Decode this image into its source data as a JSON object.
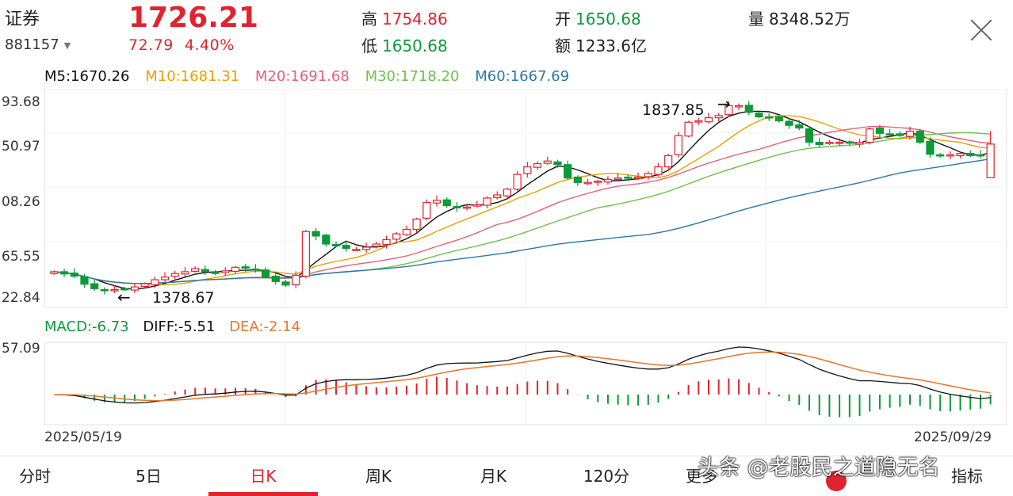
{
  "header": {
    "name": "证券",
    "code": "881157",
    "price": "1726.21",
    "change": "72.79",
    "change_pct": "4.40%",
    "high_label": "高",
    "high": "1754.86",
    "low_label": "低",
    "low": "1650.68",
    "open_label": "开",
    "open": "1650.68",
    "amount_label": "额",
    "amount": "1233.6亿",
    "volume_label": "量",
    "volume": "8348.52万"
  },
  "ma_legend": {
    "m5": "M5:1670.26",
    "m10": "M10:1681.31",
    "m20": "M20:1691.68",
    "m30": "M30:1718.20",
    "m60": "M60:1667.69"
  },
  "price_axis": [
    "93.68",
    "50.97",
    "08.26",
    "65.55",
    "22.84"
  ],
  "annotations": {
    "high_note": "1837.85",
    "low_note": "1378.67"
  },
  "macd_legend": {
    "macd": "MACD:-6.73",
    "diff": "DIFF:-5.51",
    "dea": "DEA:-2.14"
  },
  "macd_axis": {
    "top": "57.09"
  },
  "dates": {
    "start": "2025/05/19",
    "end": "2025/09/29"
  },
  "tabs": [
    "分时",
    "5日",
    "日K",
    "周K",
    "月K",
    "120分",
    "更多"
  ],
  "active_tab": "日K",
  "extra_tab_label": "指标",
  "watermark": "头条 @老股民之道隐无名",
  "colors": {
    "up": "#e0232e",
    "down": "#0a9a38",
    "m5": "#111111",
    "m10": "#e6a200",
    "m20": "#e8607a",
    "m30": "#6cc24a",
    "m60": "#2c77a8",
    "dea": "#e8752a"
  },
  "chart_data": {
    "type": "candlestick",
    "x_start": "2025/05/19",
    "x_end": "2025/09/29",
    "price_range": [
      1378.67,
      1837.85
    ],
    "marked_high": 1837.85,
    "marked_low": 1378.67,
    "last": {
      "open": 1650.68,
      "high": 1754.86,
      "low": 1650.68,
      "close": 1726.21
    },
    "closes": [
      1440,
      1435,
      1430,
      1412,
      1402,
      1398,
      1400,
      1400,
      1406,
      1413,
      1422,
      1428,
      1436,
      1440,
      1447,
      1440,
      1436,
      1442,
      1450,
      1448,
      1444,
      1428,
      1418,
      1410,
      1432,
      1530,
      1520,
      1502,
      1498,
      1492,
      1490,
      1495,
      1502,
      1512,
      1525,
      1535,
      1558,
      1595,
      1600,
      1588,
      1583,
      1585,
      1590,
      1605,
      1612,
      1625,
      1658,
      1675,
      1682,
      1688,
      1680,
      1650,
      1640,
      1640,
      1643,
      1647,
      1650,
      1650,
      1652,
      1660,
      1675,
      1700,
      1745,
      1775,
      1778,
      1785,
      1790,
      1812,
      1812,
      1797,
      1787,
      1785,
      1778,
      1768,
      1762,
      1730,
      1725,
      1730,
      1730,
      1728,
      1730,
      1760,
      1750,
      1748,
      1745,
      1755,
      1730,
      1703,
      1700,
      1702,
      1705,
      1700,
      1700,
      1726
    ],
    "ma_last": {
      "M5": 1670.26,
      "M10": 1681.31,
      "M20": 1691.68,
      "M30": 1718.2,
      "M60": 1667.69
    },
    "macd_last": {
      "MACD": -6.73,
      "DIFF": -5.51,
      "DEA": -2.14
    },
    "macd_top": 57.09
  }
}
